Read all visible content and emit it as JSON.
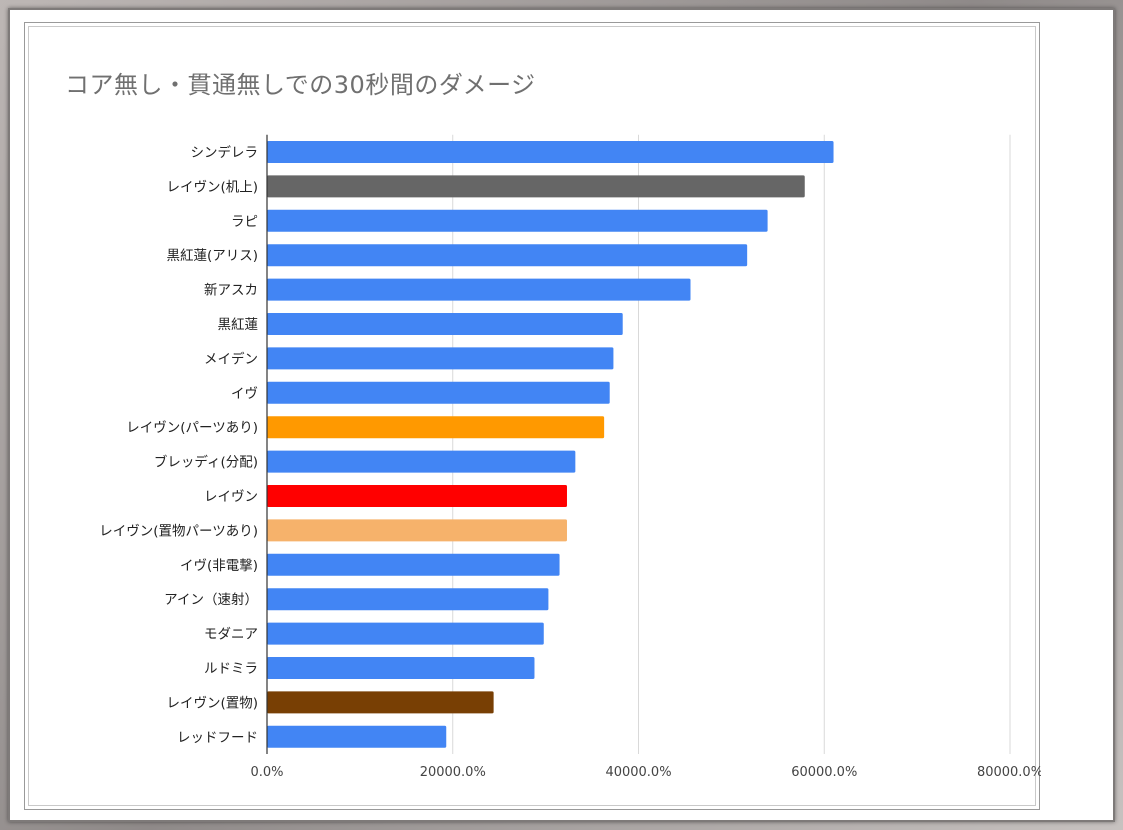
{
  "chart_data": {
    "type": "bar",
    "orientation": "horizontal",
    "title": "コア無し・貫通無しでの30秒間のダメージ",
    "xlabel": "",
    "ylabel": "",
    "xlim": [
      0,
      80000
    ],
    "x_ticks": [
      0,
      20000,
      40000,
      60000,
      80000
    ],
    "x_tick_labels": [
      "0.0%",
      "20000.0%",
      "40000.0%",
      "60000.0%",
      "80000.0%"
    ],
    "grid": true,
    "legend": "none",
    "categories": [
      "シンデレラ",
      "レイヴン(机上)",
      "ラピ",
      "黒紅蓮(アリス)",
      "新アスカ",
      "黒紅蓮",
      "メイデン",
      "イヴ",
      "レイヴン(パーツあり)",
      "ブレッディ(分配)",
      "レイヴン",
      "レイヴン(置物パーツあり)",
      "イヴ(非電撃)",
      "アイン（速射）",
      "モダニア",
      "ルドミラ",
      "レイヴン(置物)",
      "レッドフード"
    ],
    "values": [
      61000,
      57900,
      53900,
      51700,
      45600,
      38300,
      37300,
      36900,
      36300,
      33200,
      32300,
      32300,
      31500,
      30300,
      29800,
      28800,
      24400,
      19300
    ],
    "colors": [
      "#4285f4",
      "#666666",
      "#4285f4",
      "#4285f4",
      "#4285f4",
      "#4285f4",
      "#4285f4",
      "#4285f4",
      "#ff9900",
      "#4285f4",
      "#ff0000",
      "#f6b26b",
      "#4285f4",
      "#4285f4",
      "#4285f4",
      "#4285f4",
      "#783f04",
      "#4285f4"
    ]
  }
}
